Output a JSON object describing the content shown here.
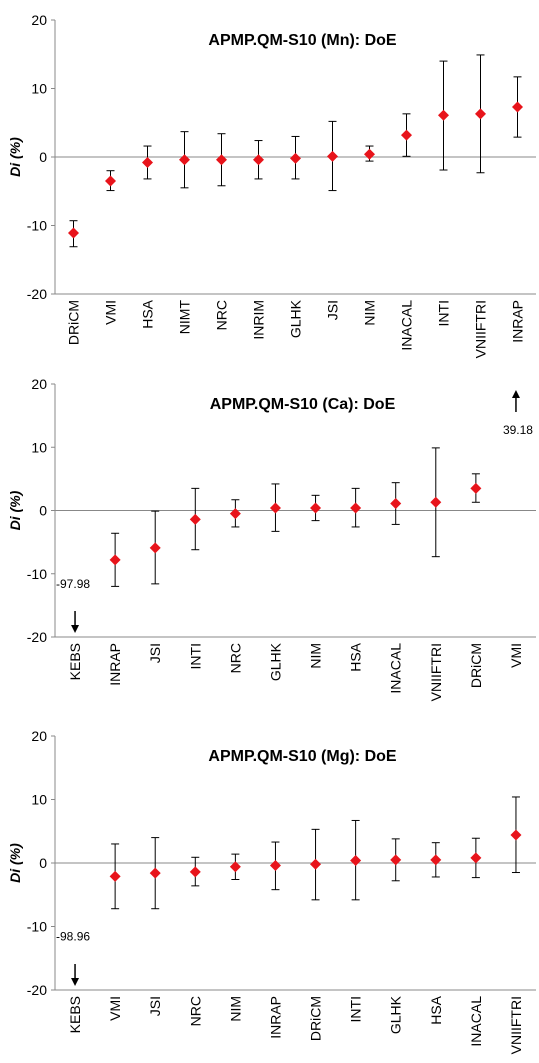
{
  "chart_data": [
    {
      "type": "scatter",
      "title": "APMP.QM-S10 (Mn): DoE",
      "ylabel": "Di (%)",
      "xlabel": "",
      "ylim": [
        -20,
        20
      ],
      "yticks": [
        20,
        10,
        0,
        -10,
        -20
      ],
      "grid": false,
      "marker_color": "#e8141b",
      "categories": [
        "DRiCM",
        "VMI",
        "HSA",
        "NIMT",
        "NRC",
        "INRIM",
        "GLHK",
        "JSI",
        "NIM",
        "INACAL",
        "INTI",
        "VNIIFTRI",
        "INRAP"
      ],
      "values": [
        -11.1,
        -3.5,
        -0.8,
        -0.4,
        -0.4,
        -0.4,
        -0.2,
        0.1,
        0.4,
        3.2,
        6.1,
        6.3,
        7.3
      ],
      "err_low": [
        -13.1,
        -4.9,
        -3.2,
        -4.5,
        -4.2,
        -3.2,
        -3.2,
        -4.9,
        -0.6,
        0.1,
        -1.9,
        -2.3,
        2.9
      ],
      "err_high": [
        -9.3,
        -2.0,
        1.6,
        3.7,
        3.4,
        2.4,
        3.0,
        5.2,
        1.6,
        6.3,
        14.0,
        14.9,
        11.7
      ],
      "annotations": []
    },
    {
      "type": "scatter",
      "title": "APMP.QM-S10 (Ca): DoE",
      "ylabel": "Di (%)",
      "xlabel": "",
      "ylim": [
        -20,
        20
      ],
      "yticks": [
        20,
        10,
        0,
        -10,
        -20
      ],
      "grid": false,
      "marker_color": "#e8141b",
      "categories": [
        "KEBS",
        "INRAP",
        "JSI",
        "INTI",
        "NRC",
        "GLHK",
        "NIM",
        "HSA",
        "INACAL",
        "VNIIFTRI",
        "DRiCM",
        "VMI"
      ],
      "values": [
        null,
        -7.8,
        -5.9,
        -1.4,
        -0.5,
        0.4,
        0.4,
        0.4,
        1.1,
        1.3,
        3.5,
        null
      ],
      "err_low": [
        null,
        -12.0,
        -11.6,
        -6.2,
        -2.6,
        -3.3,
        -1.6,
        -2.6,
        -2.2,
        -7.3,
        1.3,
        null
      ],
      "err_high": [
        null,
        -3.6,
        -0.1,
        3.5,
        1.7,
        4.2,
        2.4,
        3.5,
        4.4,
        9.9,
        5.8,
        null
      ],
      "annotations": [
        {
          "category_index": 0,
          "label": "-97.98",
          "direction": "down"
        },
        {
          "category_index": 11,
          "label": "39.18",
          "direction": "up"
        }
      ]
    },
    {
      "type": "scatter",
      "title": "APMP.QM-S10 (Mg): DoE",
      "ylabel": "Di (%)",
      "xlabel": "",
      "ylim": [
        -20,
        20
      ],
      "yticks": [
        20,
        10,
        0,
        -10,
        -20
      ],
      "grid": false,
      "marker_color": "#e8141b",
      "categories": [
        "KEBS",
        "VMI",
        "JSI",
        "NRC",
        "NIM",
        "INRAP",
        "DRiCM",
        "INTI",
        "GLHK",
        "HSA",
        "INACAL",
        "VNIIFTRI"
      ],
      "values": [
        null,
        -2.1,
        -1.6,
        -1.4,
        -0.6,
        -0.4,
        -0.2,
        0.4,
        0.5,
        0.5,
        0.8,
        4.4
      ],
      "err_low": [
        null,
        -7.2,
        -7.2,
        -3.6,
        -2.6,
        -4.2,
        -5.8,
        -5.8,
        -2.8,
        -2.2,
        -2.3,
        -1.5
      ],
      "err_high": [
        null,
        3.0,
        4.0,
        0.9,
        1.4,
        3.3,
        5.3,
        6.7,
        3.8,
        3.2,
        3.9,
        10.4
      ],
      "annotations": [
        {
          "category_index": 0,
          "label": "-98.96",
          "direction": "down"
        }
      ]
    }
  ]
}
